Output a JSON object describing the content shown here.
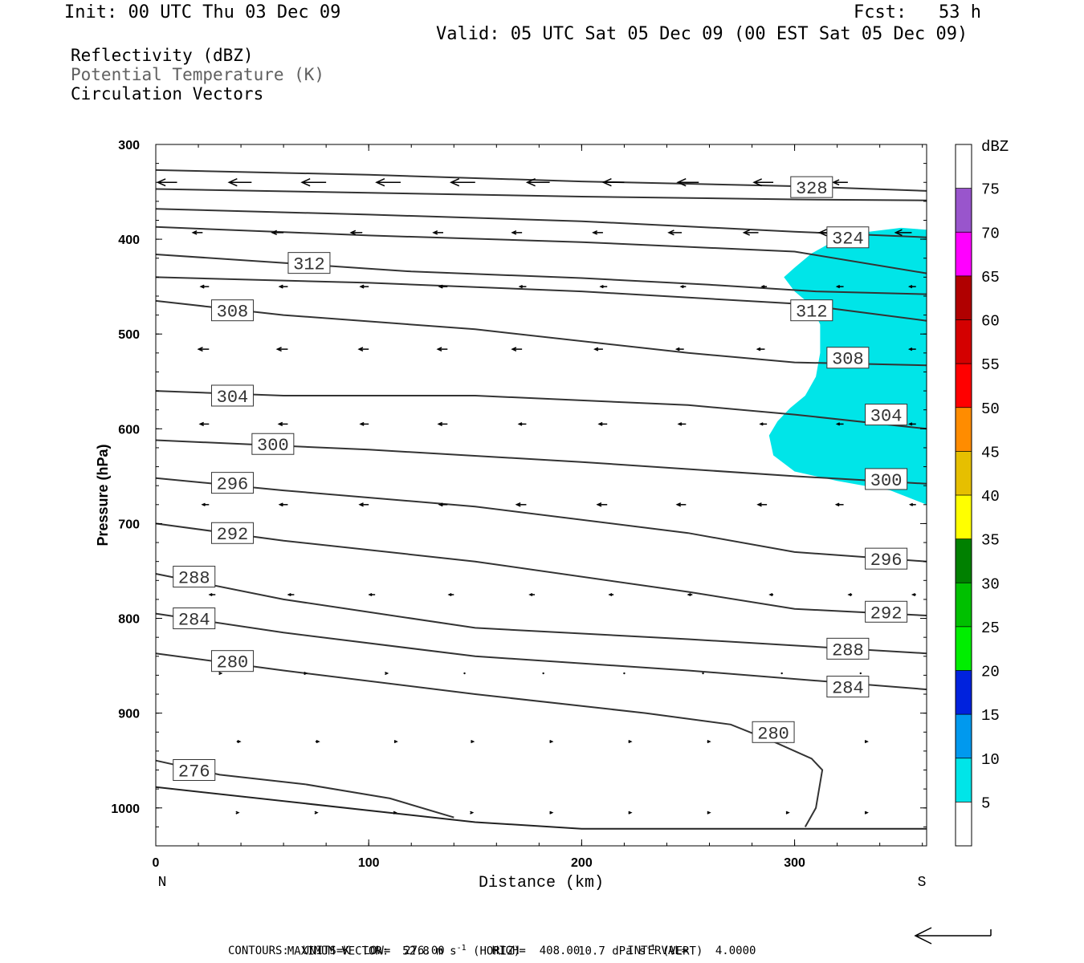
{
  "header": {
    "init": "Init: 00 UTC Thu 03 Dec 09",
    "fcst": "Fcst:   53 h",
    "valid": "Valid: 05 UTC Sat 05 Dec 09 (00 EST Sat 05 Dec 09)"
  },
  "legend_lines": [
    {
      "text": "Reflectivity (dBZ)",
      "color": "#000000"
    },
    {
      "text": "Potential Temperature (K)",
      "color": "#606060"
    },
    {
      "text": "Circulation Vectors",
      "color": "#000000"
    }
  ],
  "footer": {
    "line1_a": "MAXIMUM VECTOR:  52.8 m s",
    "line1_b": " (HORIZ)",
    "line1_c": "10.7 dPa s",
    "line1_d": " (VERT)",
    "superscript": "-1",
    "line2": "CONTOURS:  UNITS=K  LOW=  276.00       HIGH=  408.00       INTERVAL=    4.0000"
  },
  "chart_data": {
    "type": "contour",
    "xlabel": "Distance (km)",
    "ylabel": "Pressure (hPa)",
    "x_ticks": [
      0,
      100,
      200,
      300
    ],
    "y_ticks": [
      300,
      400,
      500,
      600,
      700,
      800,
      900,
      1000
    ],
    "xlim": [
      0,
      362
    ],
    "ylim": [
      1040,
      300
    ],
    "x_end_labels": {
      "left": "N",
      "right": "S"
    },
    "colorbar": {
      "title": "dBZ",
      "levels": [
        5,
        10,
        15,
        20,
        25,
        30,
        35,
        40,
        45,
        50,
        55,
        60,
        65,
        70,
        75
      ],
      "colors": [
        "#ffffff",
        "#00e5e8",
        "#0099ee",
        "#0022dd",
        "#00ee00",
        "#00c000",
        "#008000",
        "#ffff00",
        "#e6bf00",
        "#ff8c00",
        "#ff0000",
        "#d40000",
        "#b00000",
        "#ff00ff",
        "#9955cc",
        "#ffffff"
      ]
    },
    "reflectivity_region": {
      "level": "5-10 dBZ",
      "color": "#00e5e8",
      "boundary": [
        [
          362,
          390
        ],
        [
          350,
          388
        ],
        [
          335,
          392
        ],
        [
          320,
          400
        ],
        [
          308,
          415
        ],
        [
          300,
          430
        ],
        [
          295,
          440
        ],
        [
          300,
          455
        ],
        [
          308,
          470
        ],
        [
          312,
          490
        ],
        [
          312,
          520
        ],
        [
          310,
          545
        ],
        [
          305,
          565
        ],
        [
          298,
          578
        ],
        [
          292,
          592
        ],
        [
          288,
          607
        ],
        [
          290,
          628
        ],
        [
          300,
          645
        ],
        [
          320,
          655
        ],
        [
          345,
          665
        ],
        [
          362,
          680
        ]
      ]
    },
    "theta_contours": [
      {
        "label": "328",
        "label_at": [
          308,
          345
        ],
        "points": [
          [
            0,
            327
          ],
          [
            100,
            332
          ],
          [
            200,
            339
          ],
          [
            300,
            344
          ],
          [
            362,
            349
          ]
        ]
      },
      {
        "label": "",
        "label_at": null,
        "points": [
          [
            0,
            347
          ],
          [
            100,
            351
          ],
          [
            200,
            355
          ],
          [
            300,
            358
          ],
          [
            362,
            359
          ]
        ]
      },
      {
        "label": "",
        "label_at": null,
        "points": [
          [
            0,
            368
          ],
          [
            100,
            374
          ],
          [
            200,
            381
          ],
          [
            300,
            392
          ],
          [
            362,
            398
          ]
        ]
      },
      {
        "label": "324",
        "label_at": [
          325,
          398
        ],
        "points": [
          [
            0,
            387
          ],
          [
            100,
            396
          ],
          [
            200,
            403
          ],
          [
            300,
            413
          ],
          [
            362,
            436
          ]
        ]
      },
      {
        "label": "312",
        "label_at": [
          72,
          425
        ],
        "points": [
          [
            0,
            416
          ],
          [
            60,
            425
          ],
          [
            120,
            434
          ],
          [
            200,
            441
          ],
          [
            260,
            448
          ],
          [
            310,
            455
          ],
          [
            362,
            458
          ]
        ]
      },
      {
        "label": "312",
        "label_at": [
          308,
          475
        ],
        "points": [
          [
            0,
            440
          ],
          [
            100,
            446
          ],
          [
            200,
            455
          ],
          [
            300,
            468
          ],
          [
            362,
            486
          ]
        ]
      },
      {
        "label": "308",
        "label_at": [
          36,
          475
        ],
        "points": [
          [
            0,
            465
          ],
          [
            60,
            480
          ],
          [
            150,
            495
          ],
          [
            250,
            520
          ],
          [
            300,
            530
          ],
          [
            362,
            533
          ]
        ]
      },
      {
        "label": "308",
        "label_at": [
          325,
          525
        ],
        "points": []
      },
      {
        "label": "304",
        "label_at": [
          36,
          565
        ],
        "points": [
          [
            0,
            560
          ],
          [
            60,
            565
          ],
          [
            150,
            565
          ],
          [
            250,
            575
          ],
          [
            300,
            585
          ],
          [
            362,
            600
          ]
        ]
      },
      {
        "label": "304",
        "label_at": [
          343,
          585
        ],
        "points": []
      },
      {
        "label": "300",
        "label_at": [
          55,
          616
        ],
        "points": [
          [
            0,
            612
          ],
          [
            100,
            622
          ],
          [
            200,
            635
          ],
          [
            300,
            650
          ],
          [
            362,
            658
          ]
        ]
      },
      {
        "label": "300",
        "label_at": [
          343,
          653
        ],
        "points": []
      },
      {
        "label": "296",
        "label_at": [
          36,
          657
        ],
        "points": [
          [
            0,
            652
          ],
          [
            60,
            665
          ],
          [
            150,
            682
          ],
          [
            250,
            710
          ],
          [
            300,
            730
          ],
          [
            362,
            740
          ]
        ]
      },
      {
        "label": "296",
        "label_at": [
          343,
          737
        ],
        "points": []
      },
      {
        "label": "292",
        "label_at": [
          36,
          710
        ],
        "points": [
          [
            0,
            700
          ],
          [
            60,
            718
          ],
          [
            150,
            740
          ],
          [
            250,
            772
          ],
          [
            300,
            790
          ],
          [
            362,
            797
          ]
        ]
      },
      {
        "label": "292",
        "label_at": [
          343,
          793
        ],
        "points": []
      },
      {
        "label": "288",
        "label_at": [
          18,
          756
        ],
        "points": [
          [
            0,
            753
          ],
          [
            60,
            780
          ],
          [
            150,
            810
          ],
          [
            250,
            822
          ],
          [
            362,
            837
          ]
        ]
      },
      {
        "label": "288",
        "label_at": [
          325,
          832
        ],
        "points": []
      },
      {
        "label": "284",
        "label_at": [
          18,
          800
        ],
        "points": [
          [
            0,
            795
          ],
          [
            60,
            815
          ],
          [
            150,
            840
          ],
          [
            250,
            855
          ],
          [
            362,
            875
          ]
        ]
      },
      {
        "label": "284",
        "label_at": [
          325,
          872
        ],
        "points": []
      },
      {
        "label": "280",
        "label_at": [
          36,
          845
        ],
        "points": [
          [
            0,
            837
          ],
          [
            60,
            855
          ],
          [
            150,
            880
          ],
          [
            230,
            900
          ],
          [
            270,
            912
          ],
          [
            290,
            930
          ],
          [
            308,
            948
          ],
          [
            313,
            960
          ],
          [
            310,
            1000
          ],
          [
            305,
            1020
          ]
        ]
      },
      {
        "label": "280",
        "label_at": [
          290,
          920
        ],
        "points": []
      },
      {
        "label": "276",
        "label_at": [
          18,
          960
        ],
        "points": [
          [
            0,
            950
          ],
          [
            30,
            965
          ],
          [
            70,
            975
          ],
          [
            110,
            990
          ],
          [
            140,
            1010
          ]
        ]
      }
    ],
    "vector_rows": [
      {
        "p": 340,
        "x": [
          10,
          45,
          80,
          115,
          150,
          185,
          220,
          255,
          290,
          325
        ],
        "len": [
          24,
          28,
          30,
          30,
          30,
          28,
          26,
          26,
          24,
          18
        ]
      },
      {
        "p": 393,
        "x": [
          22,
          60,
          97,
          135,
          172,
          210,
          247,
          283,
          320,
          355
        ],
        "len": [
          12,
          14,
          14,
          12,
          12,
          12,
          16,
          18,
          22,
          20
        ]
      },
      {
        "p": 450,
        "x": [
          25,
          62,
          100,
          137,
          174,
          212,
          249,
          287,
          323,
          357
        ],
        "len": [
          10,
          10,
          10,
          10,
          8,
          8,
          6,
          6,
          8,
          8
        ]
      },
      {
        "p": 516,
        "x": [
          25,
          62,
          100,
          137,
          172,
          210,
          248,
          286,
          323,
          357
        ],
        "len": [
          13,
          13,
          12,
          12,
          12,
          10,
          9,
          9,
          9,
          8
        ]
      },
      {
        "p": 595,
        "x": [
          25,
          62,
          100,
          137,
          174,
          212,
          249,
          287,
          323,
          357
        ],
        "len": [
          11,
          11,
          10,
          11,
          9,
          10,
          9,
          8,
          8,
          8
        ]
      },
      {
        "p": 680,
        "x": [
          25,
          62,
          100,
          137,
          174,
          212,
          249,
          287,
          323,
          357
        ],
        "len": [
          8,
          10,
          11,
          10,
          12,
          12,
          11,
          11,
          9,
          7
        ]
      },
      {
        "p": 775,
        "x": [
          28,
          65,
          103,
          140,
          178,
          215,
          252,
          290,
          327,
          357
        ],
        "len": [
          7,
          7,
          7,
          6,
          6,
          5,
          5,
          4,
          4,
          4
        ]
      },
      {
        "p": 858,
        "x": [
          30,
          70,
          108,
          145,
          182,
          220,
          257,
          294,
          331
        ],
        "len": [
          2,
          2,
          2,
          1,
          1,
          1,
          1,
          1,
          1
        ]
      },
      {
        "p": 930,
        "x": [
          38,
          75,
          112,
          148,
          185,
          222,
          259,
          296,
          333
        ],
        "len": [
          4,
          4,
          3,
          3,
          3,
          3,
          3,
          3,
          3
        ]
      },
      {
        "p": 1005,
        "x": [
          38,
          75,
          112,
          148,
          185,
          222,
          259,
          296,
          333
        ],
        "len": [
          2,
          2,
          2,
          2,
          3,
          3,
          3,
          3,
          3
        ]
      }
    ]
  }
}
